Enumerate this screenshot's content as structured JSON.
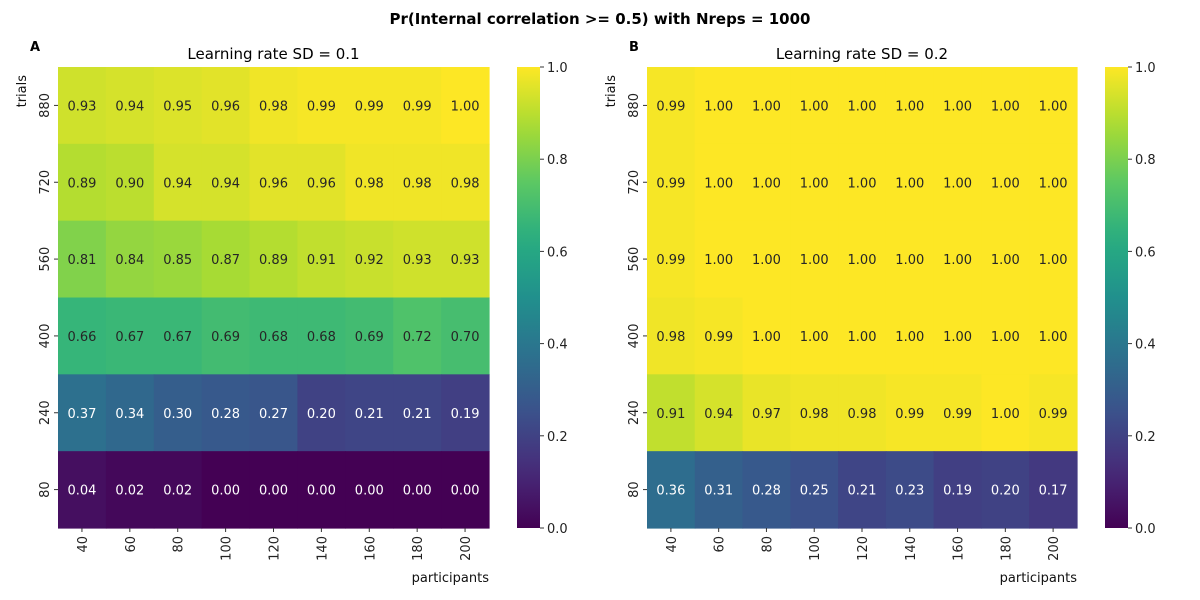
{
  "suptitle": "Pr(Internal correlation >= 0.5) with Nreps = 1000",
  "chart_data": [
    {
      "type": "heatmap",
      "panel": "A",
      "title": "Learning rate SD = 0.1",
      "xlabel": "participants",
      "ylabel": "trials",
      "x": [
        "40",
        "60",
        "80",
        "100",
        "120",
        "140",
        "160",
        "180",
        "200"
      ],
      "y": [
        "880",
        "720",
        "560",
        "400",
        "240",
        "80"
      ],
      "values": [
        [
          0.93,
          0.94,
          0.95,
          0.96,
          0.98,
          0.99,
          0.99,
          0.99,
          1.0
        ],
        [
          0.89,
          0.9,
          0.94,
          0.94,
          0.96,
          0.96,
          0.98,
          0.98,
          0.98
        ],
        [
          0.81,
          0.84,
          0.85,
          0.87,
          0.89,
          0.91,
          0.92,
          0.93,
          0.93
        ],
        [
          0.66,
          0.67,
          0.67,
          0.69,
          0.68,
          0.68,
          0.69,
          0.72,
          0.7
        ],
        [
          0.37,
          0.34,
          0.3,
          0.28,
          0.27,
          0.2,
          0.21,
          0.21,
          0.19
        ],
        [
          0.04,
          0.02,
          0.02,
          0.0,
          0.0,
          0.0,
          0.0,
          0.0,
          0.0
        ]
      ],
      "colorbar": {
        "range": [
          0,
          1
        ],
        "ticks": [
          "0.0",
          "0.2",
          "0.4",
          "0.6",
          "0.8",
          "1.0"
        ]
      },
      "colormap": "viridis"
    },
    {
      "type": "heatmap",
      "panel": "B",
      "title": "Learning rate SD = 0.2",
      "xlabel": "participants",
      "ylabel": "trials",
      "x": [
        "40",
        "60",
        "80",
        "100",
        "120",
        "140",
        "160",
        "180",
        "200"
      ],
      "y": [
        "880",
        "720",
        "560",
        "400",
        "240",
        "80"
      ],
      "values": [
        [
          0.99,
          1.0,
          1.0,
          1.0,
          1.0,
          1.0,
          1.0,
          1.0,
          1.0
        ],
        [
          0.99,
          1.0,
          1.0,
          1.0,
          1.0,
          1.0,
          1.0,
          1.0,
          1.0
        ],
        [
          0.99,
          1.0,
          1.0,
          1.0,
          1.0,
          1.0,
          1.0,
          1.0,
          1.0
        ],
        [
          0.98,
          0.99,
          1.0,
          1.0,
          1.0,
          1.0,
          1.0,
          1.0,
          1.0
        ],
        [
          0.91,
          0.94,
          0.97,
          0.98,
          0.98,
          0.99,
          0.99,
          1.0,
          0.99
        ],
        [
          0.36,
          0.31,
          0.28,
          0.25,
          0.21,
          0.23,
          0.19,
          0.2,
          0.17
        ]
      ],
      "colorbar": {
        "range": [
          0,
          1
        ],
        "ticks": [
          "0.0",
          "0.2",
          "0.4",
          "0.6",
          "0.8",
          "1.0"
        ]
      },
      "colormap": "viridis"
    }
  ]
}
